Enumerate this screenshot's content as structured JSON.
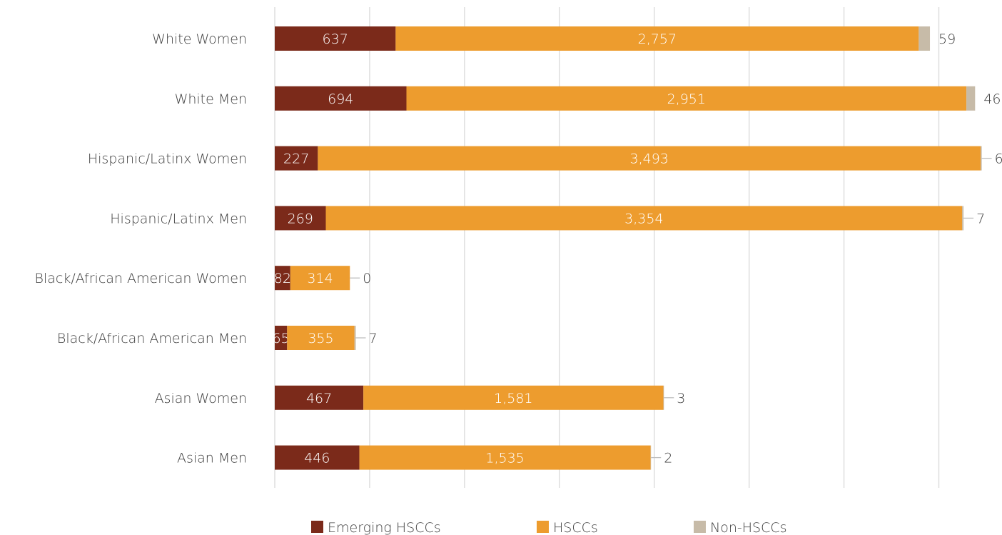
{
  "chart_data": {
    "type": "bar",
    "orientation": "horizontal",
    "stacked": true,
    "categories": [
      "White Women",
      "White Men",
      "Hispanic/Latinx Women",
      "Hispanic/Latinx Men",
      "Black/African American Women",
      "Black/African American Men",
      "Asian Women",
      "Asian Men"
    ],
    "series": [
      {
        "name": "Emerging HSCCs",
        "color": "#7B2A1A",
        "values": [
          637,
          694,
          227,
          269,
          82,
          65,
          467,
          446
        ],
        "labels": [
          "637",
          "694",
          "227",
          "269",
          "82",
          "65",
          "467",
          "446"
        ]
      },
      {
        "name": "HSCCs",
        "color": "#ED9C2E",
        "values": [
          2757,
          2951,
          3493,
          3354,
          314,
          355,
          1581,
          1535
        ],
        "labels": [
          "2,757",
          "2,951",
          "3,493",
          "3,354",
          "314",
          "355",
          "1,581",
          "1,535"
        ]
      },
      {
        "name": "Non-HSCCs",
        "color": "#C7BBA8",
        "values": [
          59,
          46,
          6,
          7,
          0,
          7,
          3,
          2
        ],
        "labels": [
          "59",
          "46",
          "6",
          "7",
          "0",
          "7",
          "3",
          "2"
        ]
      }
    ],
    "xlim": [
      0,
      3750
    ],
    "grid": true,
    "legend_position": "bottom"
  }
}
